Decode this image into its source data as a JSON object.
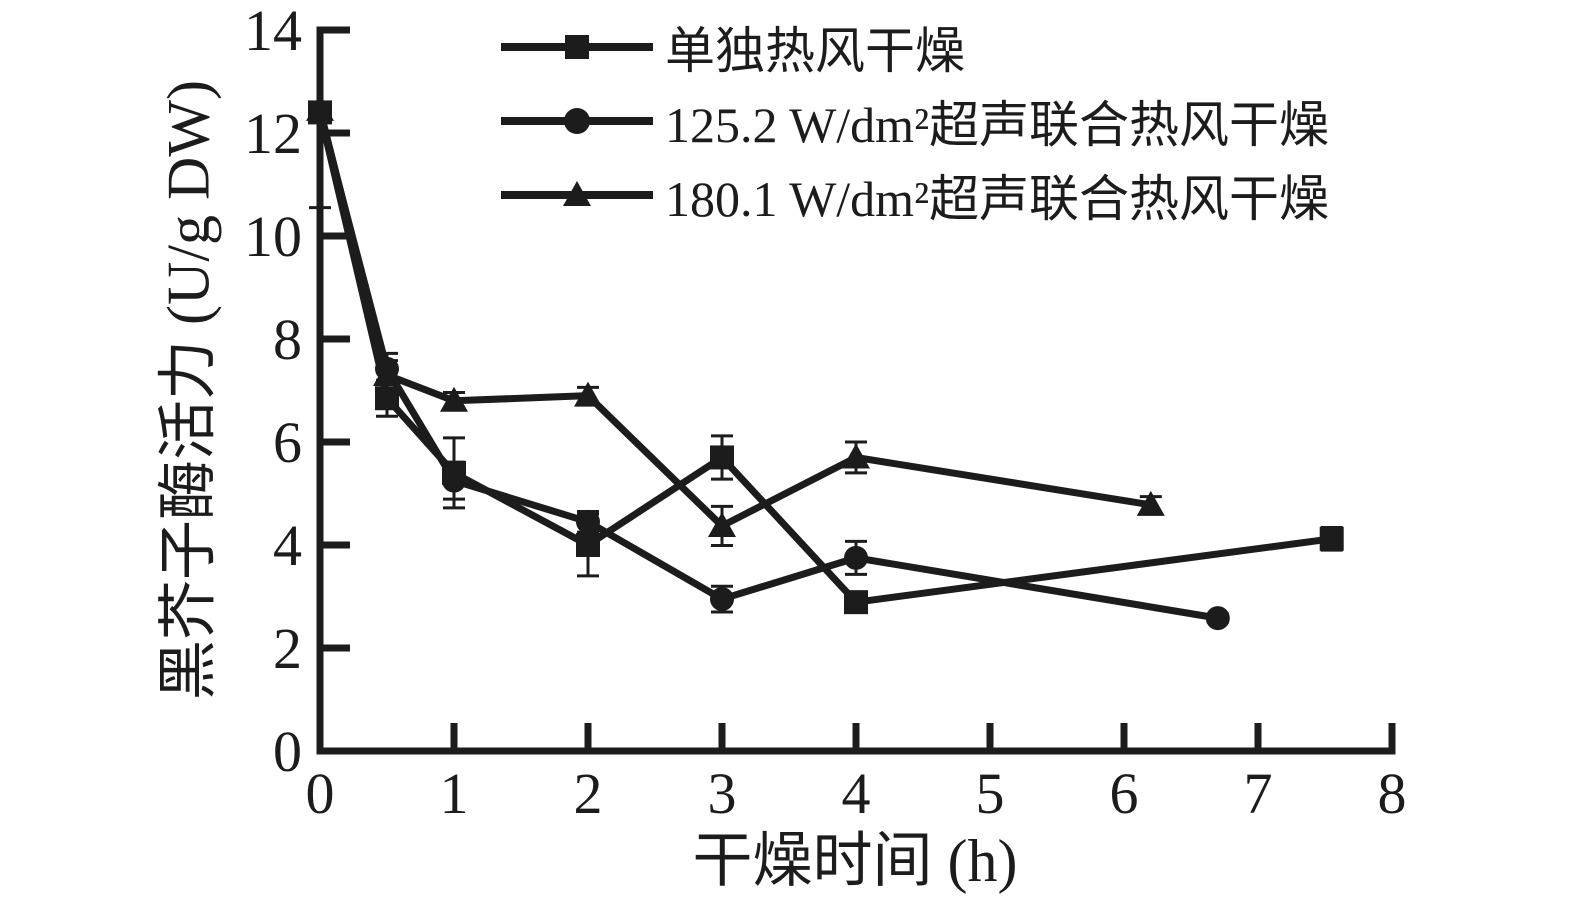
{
  "figure": {
    "background_color": "#ffffff",
    "ink_color": "#1c1c1c"
  },
  "chart_data": {
    "type": "line",
    "title": "",
    "xlabel": "干燥时间 (h)",
    "ylabel": "黑芥子酶活力 (U/g DW)",
    "xlim": [
      0,
      8
    ],
    "ylim": [
      0,
      14
    ],
    "xticks": [
      0,
      1,
      2,
      3,
      4,
      5,
      6,
      7,
      8
    ],
    "yticks": [
      0,
      2,
      4,
      6,
      8,
      10,
      12,
      14
    ],
    "grid": false,
    "legend_position": "top-left-inside",
    "series": [
      {
        "name": "180.1 W/dm²超声联合热风干燥",
        "marker": "triangle",
        "x": [
          0,
          0.5,
          1,
          2,
          3,
          4,
          6.2
        ],
        "y": [
          12.45,
          7.3,
          6.8,
          6.9,
          4.37,
          5.7,
          4.78
        ],
        "err_up": [
          0,
          0.28,
          0.16,
          0.16,
          0.38,
          0.3,
          0.16
        ],
        "err_dn": [
          0,
          0.28,
          0.16,
          0.16,
          0.38,
          0.3,
          0.16
        ]
      },
      {
        "name": "125.2 W/dm²超声联合热风干燥",
        "marker": "circle",
        "x": [
          0,
          0.5,
          1,
          2,
          3,
          4,
          6.7
        ],
        "y": [
          12.4,
          7.42,
          5.25,
          4.45,
          2.95,
          3.75,
          2.58
        ],
        "err_up": [
          0,
          0.3,
          0.36,
          0.2,
          0.25,
          0.32,
          0.08
        ],
        "err_dn": [
          0,
          0.3,
          0.36,
          0.2,
          0.25,
          0.32,
          0.08
        ]
      },
      {
        "name": "单独热风干燥",
        "marker": "square",
        "x": [
          0,
          0.5,
          1,
          2,
          3,
          4,
          7.55
        ],
        "y": [
          12.4,
          6.85,
          5.4,
          4.0,
          5.7,
          2.89,
          4.12
        ],
        "err_up": [
          0,
          0.35,
          0.68,
          0.6,
          0.42,
          0.1,
          0.22
        ],
        "err_dn": [
          1.85,
          0.35,
          0.68,
          0.6,
          0.42,
          0.1,
          0.22
        ]
      }
    ]
  },
  "legend": {
    "entries": [
      {
        "label": "单独热风干燥",
        "marker": "square"
      },
      {
        "label": "125.2 W/dm²超声联合热风干燥",
        "marker": "circle"
      },
      {
        "label": "180.1 W/dm²超声联合热风干燥",
        "marker": "triangle"
      }
    ]
  }
}
